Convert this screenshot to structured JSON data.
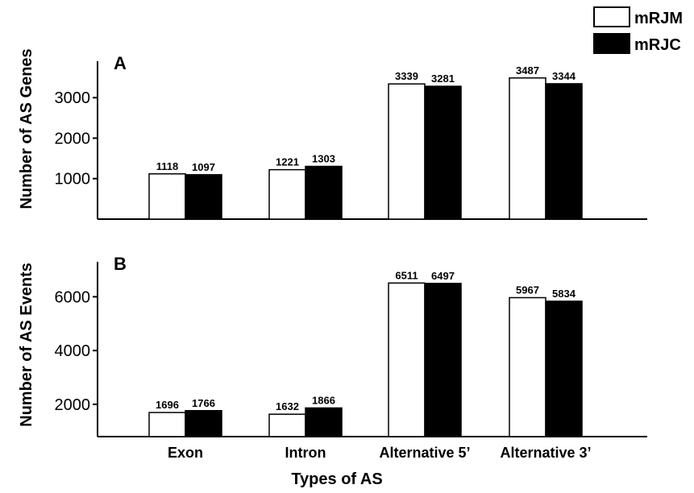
{
  "legend": {
    "items": [
      {
        "name": "mRJM",
        "color": "#ffffff"
      },
      {
        "name": "mRJC",
        "color": "#000000"
      }
    ],
    "placement": "top-right"
  },
  "xlabel": "Types of AS",
  "chart_data": [
    {
      "type": "bar",
      "panel": "A",
      "title": "",
      "ylabel": "Number of AS Genes",
      "xlabel": "Types of AS",
      "categories": [
        "Exon",
        "Intron",
        "Alternative 5’",
        "Alternative 3’"
      ],
      "series": [
        {
          "name": "mRJM",
          "color": "#ffffff",
          "values": [
            1118,
            1221,
            3339,
            3487
          ]
        },
        {
          "name": "mRJC",
          "color": "#000000",
          "values": [
            1097,
            1303,
            3281,
            3344
          ]
        }
      ],
      "ylim": [
        0,
        3900
      ],
      "yticks": [
        1000,
        2000,
        3000
      ],
      "grid": false
    },
    {
      "type": "bar",
      "panel": "B",
      "title": "",
      "ylabel": "Number of AS Events",
      "xlabel": "Types of AS",
      "categories": [
        "Exon",
        "Intron",
        "Alternative 5’",
        "Alternative 3’"
      ],
      "series": [
        {
          "name": "mRJM",
          "color": "#ffffff",
          "values": [
            1696,
            1632,
            6511,
            5967
          ]
        },
        {
          "name": "mRJC",
          "color": "#000000",
          "values": [
            1766,
            1866,
            6497,
            5834
          ]
        }
      ],
      "ylim": [
        800,
        7300
      ],
      "yticks": [
        2000,
        4000,
        6000
      ],
      "grid": false
    }
  ]
}
